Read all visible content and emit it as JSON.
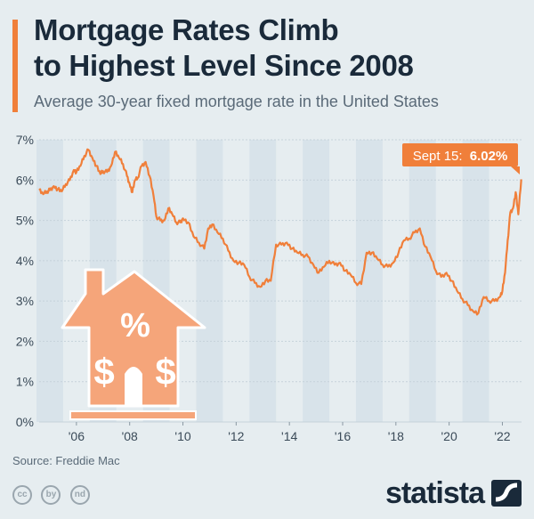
{
  "header": {
    "title_line1": "Mortgage Rates Climb",
    "title_line2": "to Highest Level Since 2008",
    "subtitle": "Average 30-year fixed mortgage rate in the United States"
  },
  "footer": {
    "source": "Source: Freddie Mac",
    "brand": "statista",
    "license_icons": [
      "cc",
      "by",
      "nd"
    ]
  },
  "colors": {
    "background": "#e6edf0",
    "line": "#f07f3a",
    "house": "#f5a57a",
    "band": "#d8e3ea",
    "text_dark": "#1a2a3a"
  },
  "chart_data": {
    "type": "line",
    "title": "Average 30-year fixed mortgage rate in the United States",
    "xlabel": "",
    "ylabel": "",
    "xlim": [
      2004.6,
      2022.72
    ],
    "ylim": [
      0,
      7
    ],
    "yticks": [
      0,
      1,
      2,
      3,
      4,
      5,
      6,
      7
    ],
    "ytick_labels": [
      "0%",
      "1%",
      "2%",
      "3%",
      "4%",
      "5%",
      "6%",
      "7%"
    ],
    "xticks": [
      2006,
      2008,
      2010,
      2012,
      2014,
      2016,
      2018,
      2020,
      2022
    ],
    "xtick_labels": [
      "'06",
      "'08",
      "'10",
      "'12",
      "'14",
      "'16",
      "'18",
      "'20",
      "'22"
    ],
    "annotation": {
      "label": "Sept 15:",
      "value": "6.02%",
      "x": 2022.71,
      "y": 6.02
    },
    "series": [
      {
        "name": "30-year fixed rate (%)",
        "x": [
          2004.6,
          2004.75,
          2004.9,
          2005.0,
          2005.15,
          2005.3,
          2005.45,
          2005.6,
          2005.75,
          2005.9,
          2006.0,
          2006.15,
          2006.3,
          2006.45,
          2006.6,
          2006.75,
          2006.9,
          2007.0,
          2007.15,
          2007.3,
          2007.45,
          2007.6,
          2007.75,
          2007.9,
          2008.0,
          2008.1,
          2008.2,
          2008.3,
          2008.45,
          2008.6,
          2008.75,
          2008.9,
          2009.0,
          2009.15,
          2009.3,
          2009.45,
          2009.6,
          2009.75,
          2009.9,
          2010.0,
          2010.2,
          2010.4,
          2010.6,
          2010.8,
          2010.95,
          2011.1,
          2011.3,
          2011.5,
          2011.7,
          2011.9,
          2012.1,
          2012.3,
          2012.5,
          2012.7,
          2012.9,
          2013.1,
          2013.3,
          2013.5,
          2013.7,
          2013.9,
          2014.1,
          2014.3,
          2014.5,
          2014.7,
          2014.9,
          2015.1,
          2015.3,
          2015.5,
          2015.7,
          2015.9,
          2016.1,
          2016.3,
          2016.5,
          2016.7,
          2016.9,
          2017.1,
          2017.3,
          2017.5,
          2017.7,
          2017.9,
          2018.1,
          2018.3,
          2018.5,
          2018.7,
          2018.9,
          2019.1,
          2019.3,
          2019.5,
          2019.7,
          2019.9,
          2020.1,
          2020.3,
          2020.5,
          2020.7,
          2020.9,
          2021.1,
          2021.3,
          2021.5,
          2021.7,
          2021.9,
          2022.0,
          2022.1,
          2022.2,
          2022.3,
          2022.4,
          2022.5,
          2022.6,
          2022.71
        ],
        "values": [
          5.75,
          5.65,
          5.72,
          5.75,
          5.85,
          5.77,
          5.72,
          5.9,
          6.0,
          6.25,
          6.2,
          6.35,
          6.6,
          6.75,
          6.55,
          6.35,
          6.15,
          6.22,
          6.2,
          6.35,
          6.7,
          6.55,
          6.4,
          6.1,
          5.9,
          5.7,
          6.0,
          6.05,
          6.35,
          6.45,
          6.1,
          5.6,
          5.1,
          5.0,
          5.0,
          5.3,
          5.15,
          4.95,
          4.95,
          5.05,
          4.95,
          4.6,
          4.45,
          4.3,
          4.8,
          4.9,
          4.7,
          4.55,
          4.25,
          4.0,
          3.95,
          3.9,
          3.6,
          3.45,
          3.35,
          3.5,
          3.5,
          4.4,
          4.4,
          4.45,
          4.3,
          4.2,
          4.15,
          4.1,
          3.9,
          3.7,
          3.85,
          4.0,
          3.9,
          3.95,
          3.75,
          3.65,
          3.45,
          3.42,
          4.2,
          4.2,
          4.05,
          3.9,
          3.85,
          3.95,
          4.2,
          4.5,
          4.55,
          4.7,
          4.8,
          4.35,
          4.1,
          3.75,
          3.6,
          3.7,
          3.5,
          3.25,
          3.05,
          2.9,
          2.75,
          2.7,
          3.1,
          3.0,
          3.0,
          3.1,
          3.25,
          3.7,
          4.5,
          5.2,
          5.3,
          5.7,
          5.15,
          6.02
        ]
      }
    ]
  }
}
